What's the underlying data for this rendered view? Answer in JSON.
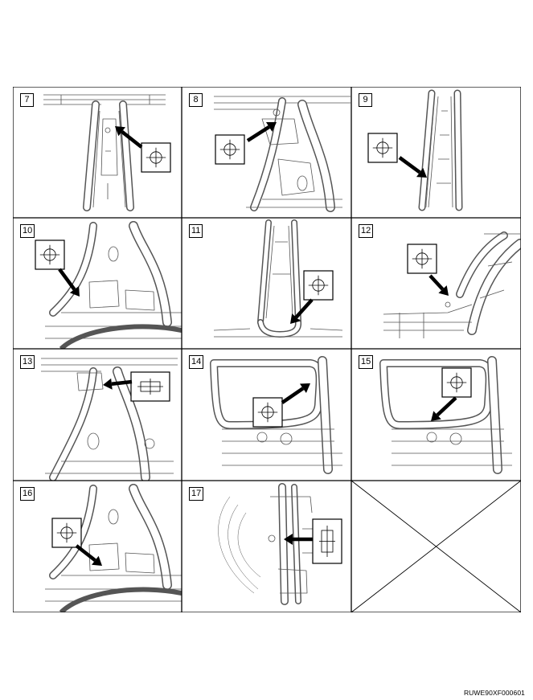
{
  "document": {
    "code": "RUWE90XF000601"
  },
  "steps": [
    {
      "number": "7",
      "symbol": "spot-weld-crosshair-icon"
    },
    {
      "number": "8",
      "symbol": "spot-weld-crosshair-icon"
    },
    {
      "number": "9",
      "symbol": "spot-weld-crosshair-icon"
    },
    {
      "number": "10",
      "symbol": "spot-weld-crosshair-icon"
    },
    {
      "number": "11",
      "symbol": "spot-weld-crosshair-icon"
    },
    {
      "number": "12",
      "symbol": "spot-weld-crosshair-icon"
    },
    {
      "number": "13",
      "symbol": "horizontal-slot-weld-icon"
    },
    {
      "number": "14",
      "symbol": "spot-weld-crosshair-icon"
    },
    {
      "number": "15",
      "symbol": "spot-weld-crosshair-icon"
    },
    {
      "number": "16",
      "symbol": "spot-weld-crosshair-icon"
    },
    {
      "number": "17",
      "symbol": "vertical-slot-weld-icon"
    },
    {
      "number": "",
      "symbol": "empty-cell-cross-icon"
    }
  ],
  "colors": {
    "line": "#000000",
    "drawing": "#555555",
    "background": "#ffffff"
  }
}
